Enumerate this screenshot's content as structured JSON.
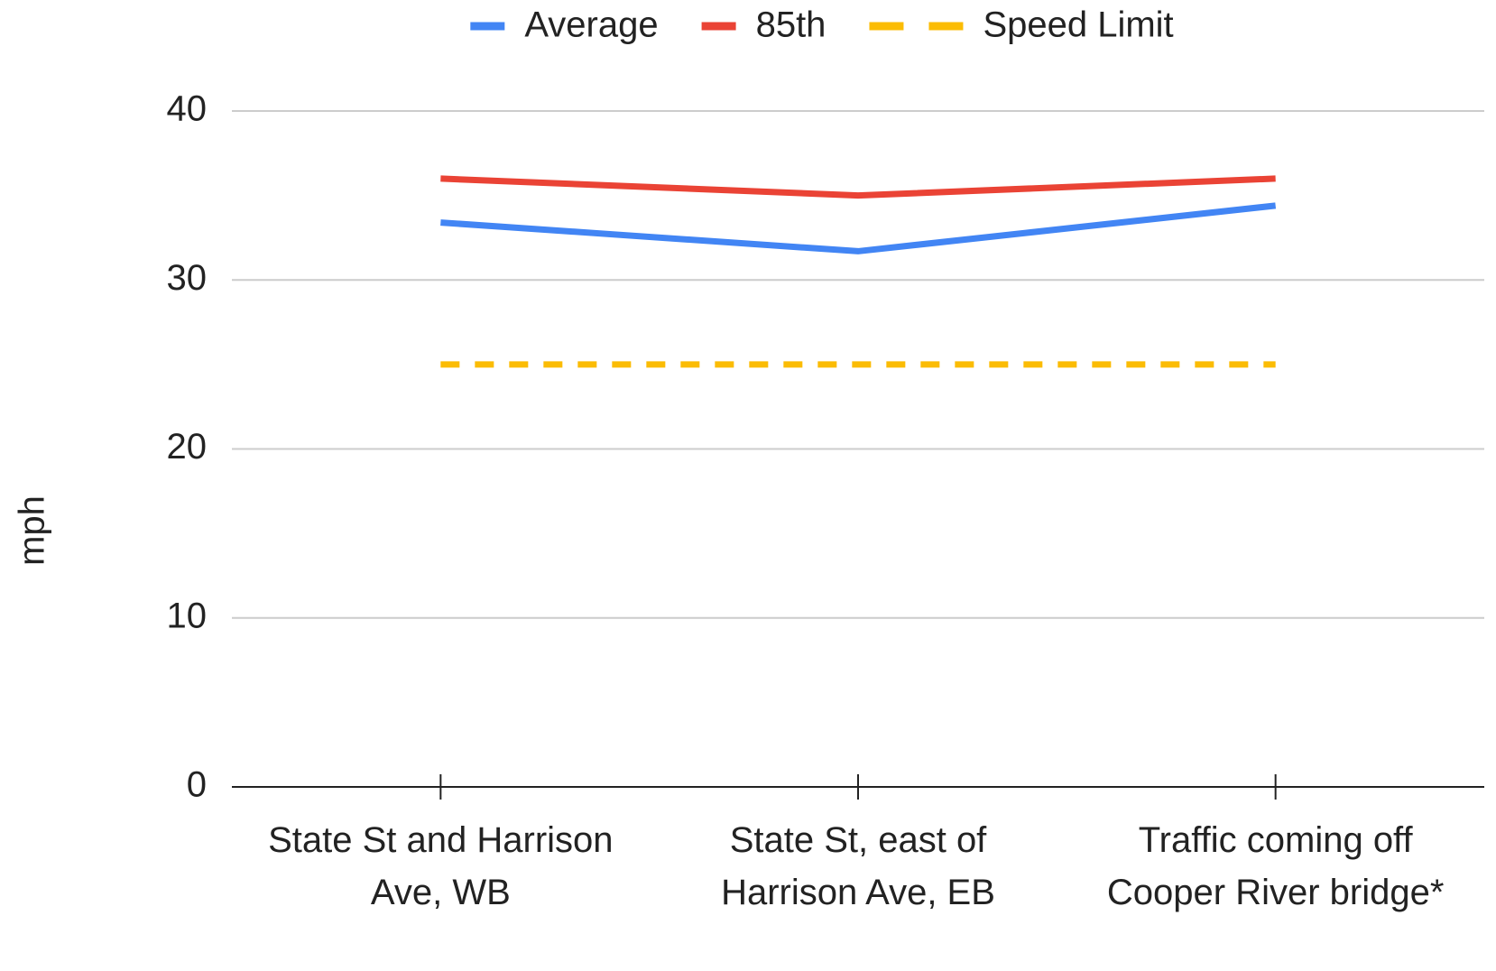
{
  "chart_data": {
    "type": "line",
    "y_label": "mph",
    "categories": [
      "State St and Harrison Ave, WB",
      "State St, east of Harrison Ave, EB",
      "Traffic coming off Cooper River bridge*"
    ],
    "series": [
      {
        "name": "Average",
        "color": "#4285f4",
        "dashed": false,
        "values": [
          33.4,
          31.7,
          34.4
        ]
      },
      {
        "name": "85th",
        "color": "#ea4335",
        "dashed": false,
        "values": [
          36,
          35,
          36
        ]
      },
      {
        "name": "Speed Limit",
        "color": "#fbbc04",
        "dashed": true,
        "values": [
          25,
          25,
          25
        ]
      }
    ],
    "ylim": [
      0,
      40
    ],
    "yticks": [
      0,
      10,
      20,
      30,
      40
    ],
    "grid": true,
    "legend": "top"
  }
}
